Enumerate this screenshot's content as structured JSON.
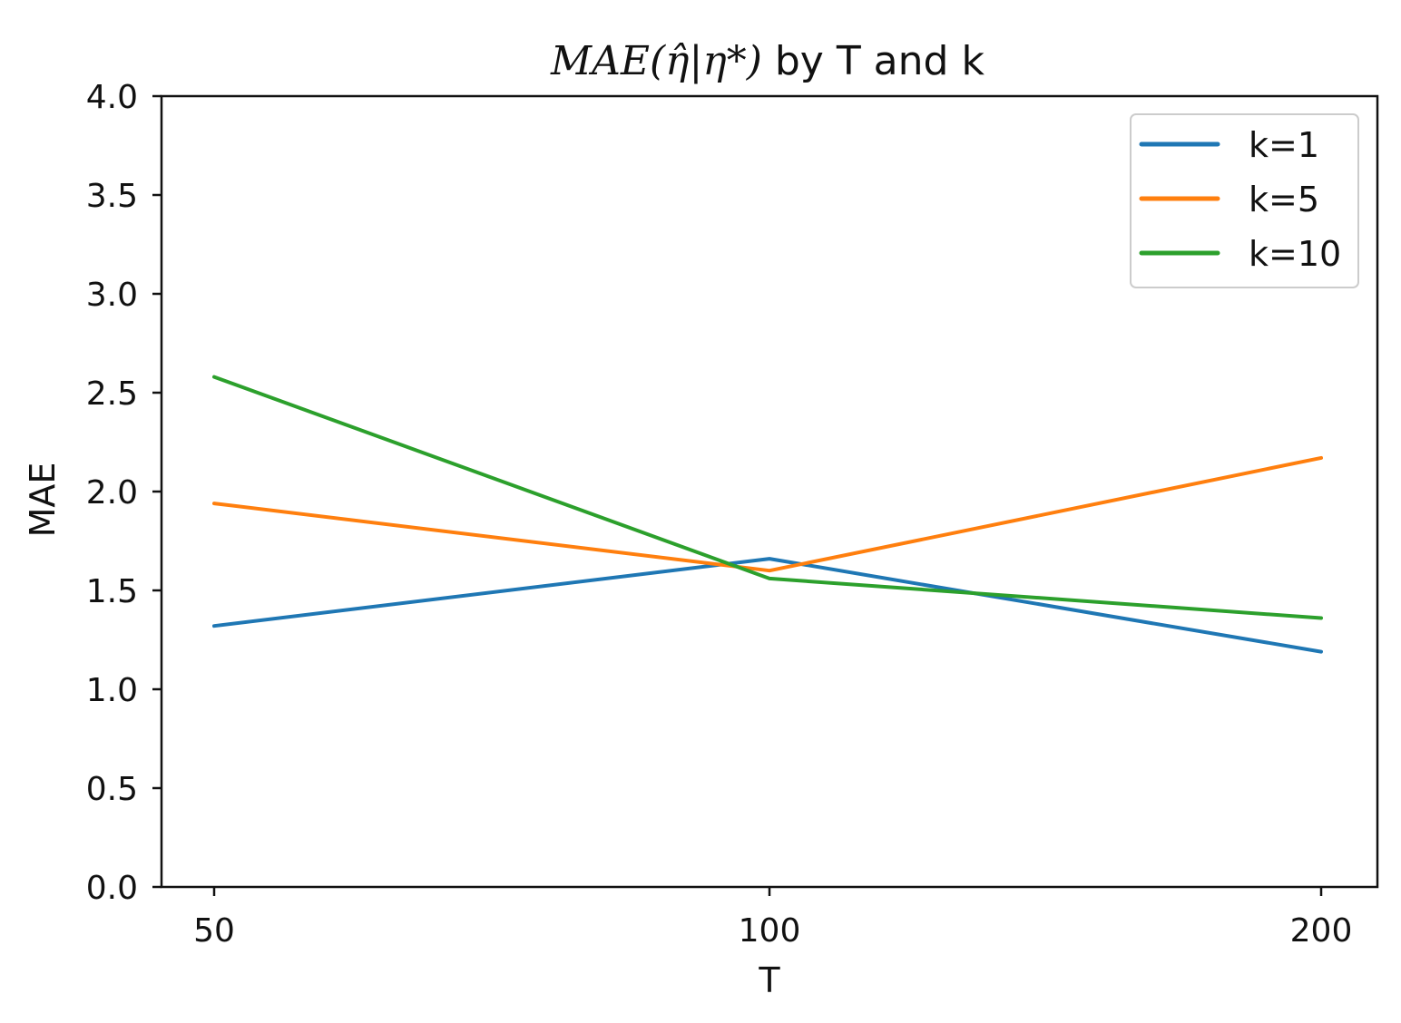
{
  "chart_data": {
    "type": "line",
    "title": {
      "math": "MAE(η̂|η*)",
      "rest": " by T and k"
    },
    "xlabel": "T",
    "ylabel": "MAE",
    "categories": [
      "50",
      "100",
      "200"
    ],
    "yticks": [
      "0.0",
      "0.5",
      "1.0",
      "1.5",
      "2.0",
      "2.5",
      "3.0",
      "3.5",
      "4.0"
    ],
    "ylim": [
      0,
      4
    ],
    "legend_position": "top-right",
    "grid": false,
    "series": [
      {
        "name": "k=1",
        "color": "#1f77b4",
        "values": [
          1.32,
          1.66,
          1.19
        ]
      },
      {
        "name": "k=5",
        "color": "#ff7f0e",
        "values": [
          1.94,
          1.6,
          2.17
        ]
      },
      {
        "name": "k=10",
        "color": "#2ca02c",
        "values": [
          2.58,
          1.56,
          1.36
        ]
      }
    ]
  }
}
